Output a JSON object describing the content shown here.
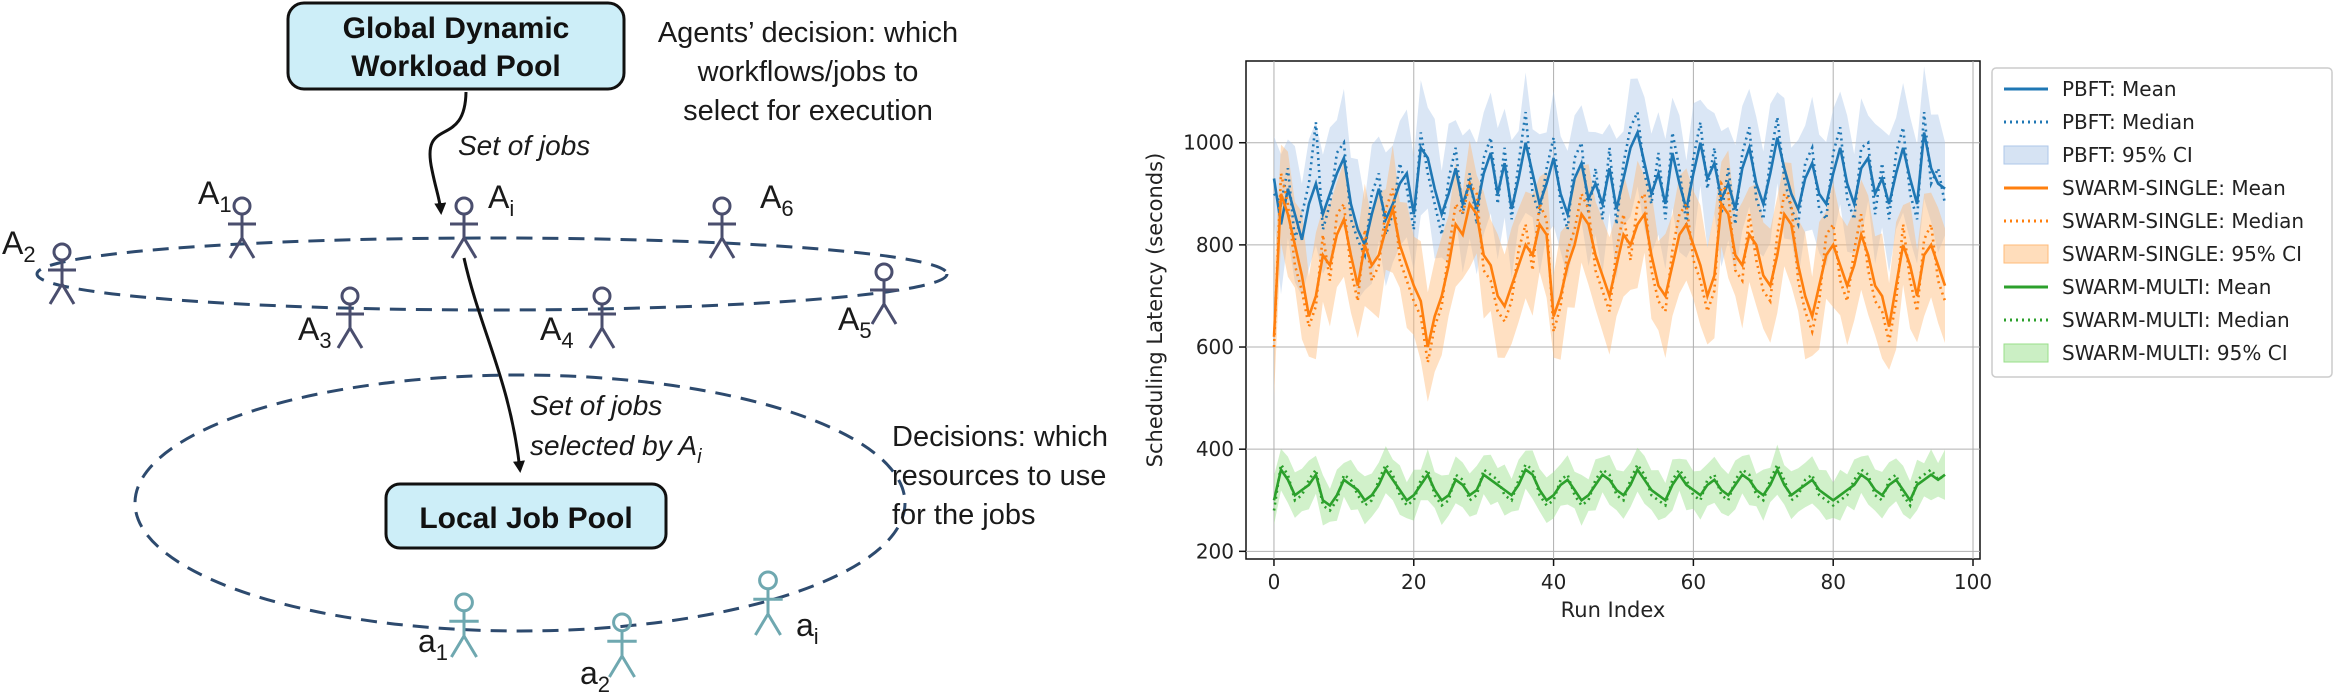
{
  "diagram": {
    "global_pool_line1": "Global Dynamic",
    "global_pool_line2": "Workload Pool",
    "agents_decision_line1": "Agents’ decision: which",
    "agents_decision_line2": "workflows/jobs to",
    "agents_decision_line3": "select for execution",
    "set_of_jobs": "Set of jobs",
    "set_of_jobs_selected_line1": "Set of jobs",
    "set_of_jobs_selected_line2": "selected by A",
    "set_of_jobs_selected_sub": "i",
    "local_pool": "Local Job Pool",
    "decisions_line1": "Decisions: which",
    "decisions_line2": "resources to use",
    "decisions_line3": "for the jobs",
    "agents": [
      {
        "main": "A",
        "sub": "1"
      },
      {
        "main": "A",
        "sub": "2"
      },
      {
        "main": "A",
        "sub": "3"
      },
      {
        "main": "A",
        "sub": "4"
      },
      {
        "main": "A",
        "sub": "5"
      },
      {
        "main": "A",
        "sub": "6"
      },
      {
        "main": "A",
        "sub": "i"
      }
    ],
    "resources": [
      {
        "main": "a",
        "sub": "1"
      },
      {
        "main": "a",
        "sub": "2"
      },
      {
        "main": "a",
        "sub": "i"
      }
    ],
    "colors": {
      "box_fill": "#cdeef8",
      "dashed": "#2d4a6e",
      "agent": "#4a4e6e",
      "resource": "#6fa8b0"
    }
  },
  "chart_data": {
    "type": "line",
    "xlabel": "Run Index",
    "ylabel": "Scheduling Latency (seconds)",
    "xlim": [
      -4,
      101
    ],
    "ylim": [
      185,
      1160
    ],
    "xticks": [
      0,
      20,
      40,
      60,
      80,
      100
    ],
    "yticks": [
      200,
      400,
      600,
      800,
      1000
    ],
    "grid": true,
    "legend_position": "outside right",
    "x_range": [
      0,
      96
    ],
    "series": [
      {
        "name": "PBFT",
        "mean": [
          930,
          840,
          910,
          860,
          810,
          880,
          920,
          860,
          900,
          940,
          970,
          880,
          830,
          800,
          860,
          910,
          850,
          880,
          920,
          940,
          860,
          990,
          970,
          910,
          860,
          900,
          950,
          880,
          920,
          870,
          940,
          980,
          900,
          960,
          870,
          930,
          1000,
          940,
          880,
          920,
          970,
          900,
          860,
          930,
          960,
          890,
          920,
          880,
          950,
          870,
          930,
          990,
          1020,
          960,
          900,
          940,
          880,
          980,
          920,
          870,
          940,
          1000,
          930,
          960,
          890,
          920,
          870,
          950,
          990,
          920,
          880,
          940,
          1010,
          950,
          900,
          870,
          930,
          960,
          900,
          880,
          940,
          990,
          920,
          880,
          950,
          970,
          900,
          930,
          880,
          940,
          990,
          930,
          880,
          1020,
          950,
          920,
          910
        ],
        "median": [
          900,
          880,
          950,
          810,
          860,
          920,
          1040,
          830,
          880,
          980,
          1000,
          850,
          810,
          780,
          900,
          940,
          820,
          860,
          960,
          910,
          830,
          1020,
          940,
          880,
          820,
          930,
          990,
          860,
          940,
          840,
          970,
          1010,
          880,
          990,
          850,
          960,
          1060,
          900,
          860,
          950,
          1010,
          880,
          830,
          970,
          1000,
          860,
          950,
          850,
          990,
          840,
          960,
          1030,
          1060,
          940,
          880,
          980,
          850,
          1020,
          950,
          840,
          970,
          1040,
          910,
          990,
          860,
          950,
          840,
          980,
          1030,
          890,
          850,
          970,
          1050,
          930,
          870,
          840,
          960,
          990,
          870,
          850,
          980,
          1030,
          890,
          850,
          990,
          1000,
          860,
          960,
          850,
          980,
          1030,
          900,
          850,
          1060,
          920,
          950,
          880
        ],
        "ci_half": 110,
        "color": "#1f77b4",
        "fill": "#aec7e8"
      },
      {
        "name": "SWARM-SINGLE",
        "mean": [
          620,
          900,
          860,
          800,
          740,
          660,
          700,
          780,
          760,
          820,
          850,
          780,
          720,
          800,
          760,
          780,
          830,
          870,
          800,
          760,
          720,
          690,
          600,
          660,
          700,
          760,
          840,
          820,
          880,
          860,
          780,
          760,
          700,
          680,
          720,
          760,
          800,
          780,
          840,
          820,
          660,
          700,
          760,
          800,
          860,
          840,
          780,
          740,
          700,
          760,
          820,
          800,
          840,
          860,
          780,
          720,
          700,
          760,
          820,
          840,
          800,
          760,
          700,
          740,
          880,
          860,
          780,
          760,
          820,
          800,
          740,
          720,
          780,
          860,
          840,
          760,
          700,
          660,
          720,
          780,
          800,
          760,
          720,
          760,
          820,
          780,
          720,
          700,
          640,
          720,
          800,
          760,
          700,
          780,
          800,
          760,
          720
        ],
        "median": [
          600,
          940,
          880,
          760,
          710,
          640,
          680,
          820,
          730,
          860,
          880,
          750,
          690,
          830,
          730,
          760,
          870,
          910,
          770,
          730,
          690,
          660,
          570,
          640,
          680,
          790,
          880,
          860,
          920,
          900,
          750,
          730,
          670,
          650,
          690,
          790,
          840,
          750,
          880,
          850,
          630,
          680,
          790,
          830,
          900,
          870,
          750,
          710,
          670,
          790,
          860,
          770,
          880,
          900,
          750,
          690,
          670,
          790,
          860,
          880,
          770,
          730,
          670,
          710,
          920,
          900,
          750,
          730,
          860,
          770,
          710,
          690,
          820,
          900,
          880,
          730,
          670,
          630,
          690,
          820,
          840,
          730,
          690,
          790,
          860,
          750,
          690,
          670,
          610,
          690,
          840,
          730,
          670,
          810,
          840,
          730,
          690
        ],
        "ci_half": 100,
        "color": "#ff7f0e",
        "fill": "#ffbb78"
      },
      {
        "name": "SWARM-MULTI",
        "mean": [
          300,
          360,
          340,
          310,
          320,
          330,
          350,
          300,
          290,
          310,
          340,
          330,
          320,
          300,
          310,
          330,
          360,
          340,
          320,
          300,
          310,
          330,
          350,
          320,
          300,
          310,
          340,
          330,
          310,
          320,
          350,
          340,
          330,
          320,
          310,
          330,
          360,
          350,
          320,
          300,
          310,
          330,
          340,
          320,
          300,
          310,
          330,
          350,
          340,
          320,
          310,
          330,
          360,
          340,
          320,
          310,
          300,
          330,
          350,
          330,
          320,
          310,
          330,
          340,
          320,
          310,
          330,
          350,
          340,
          320,
          310,
          330,
          360,
          330,
          310,
          320,
          330,
          340,
          320,
          310,
          300,
          310,
          320,
          330,
          350,
          340,
          320,
          310,
          330,
          340,
          320,
          300,
          330,
          340,
          350,
          340,
          350
        ],
        "median": [
          280,
          370,
          350,
          300,
          310,
          340,
          360,
          290,
          280,
          300,
          350,
          340,
          310,
          290,
          300,
          340,
          370,
          350,
          310,
          290,
          300,
          340,
          360,
          310,
          290,
          300,
          350,
          340,
          300,
          310,
          360,
          350,
          340,
          310,
          300,
          340,
          370,
          360,
          310,
          290,
          300,
          340,
          350,
          310,
          290,
          300,
          340,
          360,
          350,
          310,
          300,
          340,
          370,
          350,
          310,
          300,
          290,
          340,
          360,
          340,
          310,
          300,
          340,
          350,
          310,
          300,
          340,
          360,
          350,
          310,
          300,
          340,
          370,
          340,
          300,
          310,
          340,
          350,
          310,
          300,
          290,
          300,
          310,
          340,
          360,
          350,
          310,
          300,
          340,
          350,
          310,
          290,
          340,
          350,
          360,
          340,
          350
        ],
        "ci_half": 40,
        "color": "#2ca02c",
        "fill": "#98df8a"
      }
    ],
    "legend": [
      "PBFT: Mean",
      "PBFT: Median",
      "PBFT: 95% CI",
      "SWARM-SINGLE: Mean",
      "SWARM-SINGLE: Median",
      "SWARM-SINGLE: 95% CI",
      "SWARM-MULTI: Mean",
      "SWARM-MULTI: Median",
      "SWARM-MULTI: 95% CI"
    ]
  }
}
